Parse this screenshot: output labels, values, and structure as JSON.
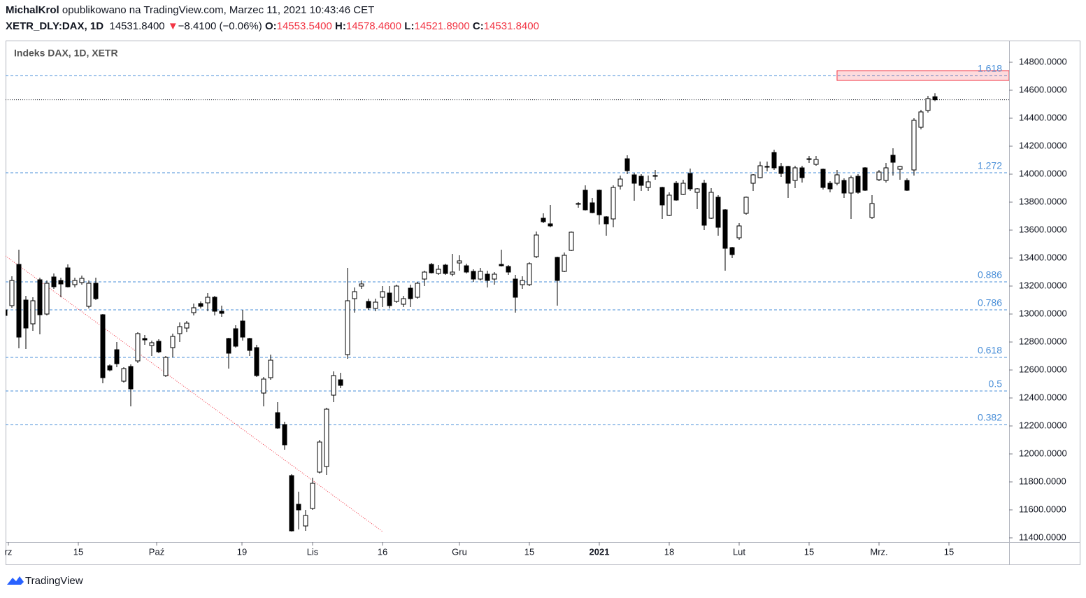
{
  "header": {
    "author": "MichalKrol",
    "published": "opublikowano na TradingView.com, Marzec 11, 2021 10:43:46 CET",
    "symbol": "XETR_DLY:DAX, 1D",
    "last": "14531.8400",
    "arrow": "▼",
    "change": "−8.4100 (−0.06%)",
    "o_label": "O:",
    "o": "14553.5400",
    "h_label": "H:",
    "h": "14578.4600",
    "l_label": "L:",
    "l": "14521.8900",
    "c_label": "C:",
    "c": "14531.8400"
  },
  "chart_data": {
    "type": "candlestick",
    "title": "Indeks DAX, 1D, XETR",
    "open": [
      13030,
      13060,
      13355,
      13100,
      12930,
      13245,
      13000,
      13265,
      13240,
      13330,
      13210,
      13225,
      13055,
      13220,
      12995,
      12630,
      12745,
      12520,
      12625,
      12665,
      12825,
      12775,
      12805,
      12560,
      12760,
      12860,
      12900,
      13010,
      13075,
      13080,
      13120,
      13020,
      12825,
      12895,
      12950,
      12825,
      12760,
      12435,
      12545,
      12295,
      12210,
      11845,
      11640,
      11485,
      11610,
      11870,
      11910,
      12420,
      12530,
      12710,
      13110,
      13200,
      13090,
      13040,
      13120,
      13150,
      13090,
      13070,
      13185,
      13120,
      13250,
      13355,
      13290,
      13350,
      13285,
      13365,
      13345,
      13305,
      13250,
      13285,
      13250,
      13355,
      13340,
      13250,
      13210,
      13210,
      13410,
      13685,
      13645,
      13405,
      13305,
      13455,
      13790,
      13885,
      13795,
      13885,
      13695,
      13680,
      13915,
      14110,
      13995,
      13985,
      13905,
      13985,
      13905,
      13705,
      13935,
      13855,
      14005,
      13870,
      13935,
      13685,
      13835,
      13745,
      13475,
      13545,
      13720,
      13935,
      13975,
      14055,
      14155,
      14055,
      14055,
      13955,
      14045,
      14105,
      14070,
      14035,
      13935,
      13935,
      13955,
      13865,
      13985,
      14045,
      13690,
      13960,
      13955,
      14135,
      14035,
      13955,
      14030,
      14335,
      14455,
      14553.54
    ],
    "high": [
      13060,
      13270,
      13460,
      13130,
      13120,
      13260,
      13240,
      13290,
      13260,
      13355,
      13260,
      13275,
      13240,
      13260,
      13000,
      12640,
      12800,
      12620,
      12640,
      12870,
      12850,
      12810,
      12820,
      12700,
      12860,
      12940,
      12950,
      13075,
      13090,
      13150,
      13130,
      13060,
      12830,
      12920,
      13030,
      12830,
      12780,
      12550,
      12710,
      12370,
      12230,
      11855,
      11730,
      11600,
      11830,
      12100,
      12330,
      12590,
      12580,
      13330,
      13190,
      13240,
      13110,
      13110,
      13200,
      13200,
      13210,
      13130,
      13210,
      13230,
      13310,
      13365,
      13350,
      13360,
      13430,
      13420,
      13360,
      13320,
      13330,
      13310,
      13300,
      13460,
      13350,
      13280,
      13270,
      13370,
      13590,
      13720,
      13780,
      13410,
      13440,
      13590,
      13800,
      13920,
      13830,
      13890,
      13700,
      13920,
      13990,
      14135,
      14010,
      14000,
      13990,
      14030,
      13910,
      13870,
      13950,
      13960,
      14040,
      13900,
      13960,
      13900,
      13850,
      13750,
      13480,
      13650,
      13840,
      14000,
      14090,
      14090,
      14175,
      14080,
      14060,
      14060,
      14060,
      14130,
      14130,
      14040,
      13950,
      14030,
      13970,
      13990,
      14000,
      14050,
      13850,
      14030,
      14080,
      14185,
      14060,
      13970,
      14400,
      14460,
      14560,
      14578.46
    ],
    "low": [
      12980,
      13045,
      12755,
      12750,
      12880,
      12855,
      12990,
      13180,
      13120,
      13190,
      13190,
      13210,
      13040,
      13100,
      12505,
      12590,
      12620,
      12510,
      12340,
      12650,
      12780,
      12700,
      12720,
      12550,
      12690,
      12800,
      12870,
      12990,
      13040,
      13020,
      12990,
      12980,
      12610,
      12760,
      12810,
      12700,
      12550,
      12340,
      12530,
      12180,
      12030,
      11445,
      11460,
      11450,
      11600,
      11860,
      11850,
      12370,
      12470,
      12680,
      13010,
      13180,
      13030,
      13020,
      13050,
      13040,
      13080,
      13050,
      13050,
      13110,
      13200,
      13290,
      13280,
      13280,
      13270,
      13310,
      13290,
      13230,
      13240,
      13190,
      13210,
      13340,
      13280,
      13010,
      13180,
      13200,
      13400,
      13650,
      13620,
      13060,
      13300,
      13450,
      13760,
      13740,
      13720,
      13640,
      13560,
      13620,
      13890,
      14000,
      13810,
      13880,
      13880,
      13960,
      13680,
      13700,
      13810,
      13850,
      13880,
      13750,
      13600,
      13680,
      13560,
      13310,
      13400,
      13530,
      13710,
      13880,
      13970,
      14020,
      14030,
      13980,
      13830,
      13900,
      13940,
      14080,
      14060,
      13890,
      13870,
      13920,
      13830,
      13680,
      13860,
      13880,
      13680,
      13950,
      13940,
      13990,
      13960,
      13880,
      13990,
      14320,
      14440,
      14521.89
    ],
    "close": [
      12990,
      13240,
      12835,
      12900,
      13095,
      12995,
      13220,
      13195,
      13215,
      13195,
      13240,
      13255,
      13220,
      13110,
      12545,
      12600,
      12645,
      12610,
      12465,
      12860,
      12815,
      12795,
      12730,
      12690,
      12840,
      12910,
      12935,
      13045,
      13055,
      13120,
      13020,
      13005,
      12720,
      12770,
      12835,
      12740,
      12560,
      12535,
      12670,
      12185,
      12065,
      11450,
      11600,
      11560,
      11790,
      12085,
      12320,
      12560,
      12490,
      13095,
      13160,
      13215,
      13045,
      13085,
      13160,
      13060,
      13200,
      13110,
      13110,
      13220,
      13300,
      13295,
      13320,
      13290,
      13300,
      13380,
      13300,
      13250,
      13305,
      13240,
      13285,
      13345,
      13300,
      13120,
      13240,
      13360,
      13565,
      13660,
      13630,
      13240,
      13420,
      13585,
      13785,
      13745,
      13725,
      13710,
      13645,
      13905,
      13965,
      14025,
      13935,
      13920,
      13945,
      13990,
      13780,
      13850,
      13815,
      13935,
      13895,
      13895,
      13635,
      13870,
      13620,
      13470,
      13425,
      13630,
      13835,
      13995,
      14060,
      14055,
      14045,
      14005,
      13935,
      14045,
      13975,
      14110,
      14105,
      13905,
      13895,
      13995,
      13865,
      13975,
      13870,
      13885,
      13790,
      14015,
      14045,
      14085,
      14055,
      13885,
      14385,
      14445,
      14540,
      14531.84
    ],
    "up_color": "#ffffff",
    "down_color": "#000000",
    "xlim": [
      0.1,
      143.6
    ],
    "xticks": [
      {
        "value": 0.5,
        "label": "rz"
      },
      {
        "value": 10.5,
        "label": "15"
      },
      {
        "value": 21.7,
        "label": "Paź"
      },
      {
        "value": 33.9,
        "label": "19"
      },
      {
        "value": 44,
        "label": "Lis"
      },
      {
        "value": 54,
        "label": "16"
      },
      {
        "value": 65,
        "label": "Gru"
      },
      {
        "value": 75,
        "label": "15"
      },
      {
        "value": 85,
        "label": "2021"
      },
      {
        "value": 95,
        "label": "18"
      },
      {
        "value": 105,
        "label": "Lut"
      },
      {
        "value": 115,
        "label": "15"
      },
      {
        "value": 125,
        "label": "Mrz."
      },
      {
        "value": 135,
        "label": "15"
      }
    ],
    "ylim": [
      11370,
      14955
    ],
    "yticks": [
      {
        "value": 11400,
        "label": "11400.0000"
      },
      {
        "value": 11600,
        "label": "11600.0000"
      },
      {
        "value": 11800,
        "label": "11800.0000"
      },
      {
        "value": 12000,
        "label": "12000.0000"
      },
      {
        "value": 12200,
        "label": "12200.0000"
      },
      {
        "value": 12400,
        "label": "12400.0000"
      },
      {
        "value": 12600,
        "label": "12600.0000"
      },
      {
        "value": 12800,
        "label": "12800.0000"
      },
      {
        "value": 13000,
        "label": "13000.0000"
      },
      {
        "value": 13200,
        "label": "13200.0000"
      },
      {
        "value": 13400,
        "label": "13400.0000"
      },
      {
        "value": 13600,
        "label": "13600.0000"
      },
      {
        "value": 13800,
        "label": "13800.0000"
      },
      {
        "value": 14000,
        "label": "14000.0000"
      },
      {
        "value": 14200,
        "label": "14200.0000"
      },
      {
        "value": 14400,
        "label": "14400.0000"
      },
      {
        "value": 14600,
        "label": "14600.0000"
      },
      {
        "value": 14800,
        "label": "14800.0000"
      }
    ],
    "levels": [
      {
        "label": "1.618",
        "value": 14705
      },
      {
        "label": "1.272",
        "value": 14010
      },
      {
        "label": "0.886",
        "value": 13230
      },
      {
        "label": "0.786",
        "value": 13030
      },
      {
        "label": "0.618",
        "value": 12690
      },
      {
        "label": "0.5",
        "value": 12450
      },
      {
        "label": "0.382",
        "value": 12210
      }
    ],
    "level_color": "#4a8fd8",
    "zone": {
      "x0": 119,
      "y0": 14670,
      "y1": 14740,
      "color": "#f23645"
    },
    "trendline": {
      "x": [
        0.1,
        54
      ],
      "y": [
        13415,
        11445
      ],
      "color": "#f23645"
    }
  },
  "footer": {
    "brand": "TradingView"
  }
}
